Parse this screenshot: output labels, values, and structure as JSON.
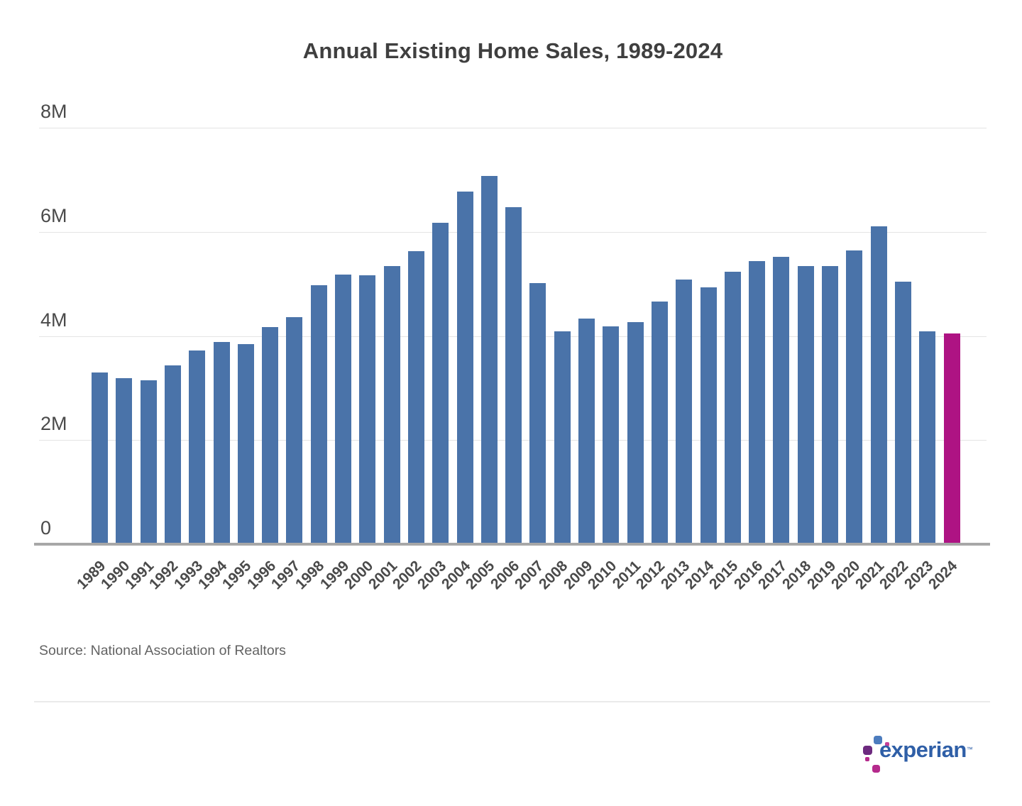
{
  "header": {
    "title": "Annual Existing Home Sales, 1989-2024"
  },
  "footer": {
    "source": "Source: National Association of Realtors",
    "logo": {
      "wordmark": "experian",
      "trademark": "™"
    }
  },
  "colors": {
    "bar_default": "#4A73A9",
    "bar_highlight": "#AE1383",
    "gridline": "#E4E4E4",
    "axis_line": "#A7A7A7",
    "title_text": "#3F3F3F",
    "tick_text": "#4A4A4A",
    "source_text": "#636363",
    "logo_blue": "#2F5FA7",
    "logo_purple": "#6D2A7F",
    "logo_magenta": "#B52A8C",
    "logo_pink": "#C74097"
  },
  "chart_data": {
    "type": "bar",
    "title": "Annual Existing Home Sales, 1989-2024",
    "unit": "millions of existing homes sold per year",
    "categories": [
      "1989",
      "1990",
      "1991",
      "1992",
      "1993",
      "1994",
      "1995",
      "1996",
      "1997",
      "1998",
      "1999",
      "2000",
      "2001",
      "2002",
      "2003",
      "2004",
      "2005",
      "2006",
      "2007",
      "2008",
      "2009",
      "2010",
      "2011",
      "2012",
      "2013",
      "2014",
      "2015",
      "2016",
      "2017",
      "2018",
      "2019",
      "2020",
      "2021",
      "2022",
      "2023",
      "2024"
    ],
    "values": [
      3.3,
      3.19,
      3.15,
      3.43,
      3.72,
      3.88,
      3.84,
      4.17,
      4.36,
      4.97,
      5.18,
      5.17,
      5.34,
      5.63,
      6.18,
      6.78,
      7.08,
      6.48,
      5.02,
      4.09,
      4.34,
      4.19,
      4.26,
      4.66,
      5.08,
      4.94,
      5.24,
      5.44,
      5.52,
      5.34,
      5.34,
      5.64,
      6.11,
      5.04,
      4.09,
      4.05
    ],
    "highlight_category": "2024",
    "xlabel": "",
    "ylabel": "",
    "ylim": [
      0,
      8
    ],
    "yticks": [
      {
        "value": 8,
        "label": "8M"
      },
      {
        "value": 6,
        "label": "6M"
      },
      {
        "value": 4,
        "label": "4M"
      },
      {
        "value": 2,
        "label": "2M"
      },
      {
        "value": 0,
        "label": "0"
      }
    ],
    "grid": true,
    "legend": false
  }
}
